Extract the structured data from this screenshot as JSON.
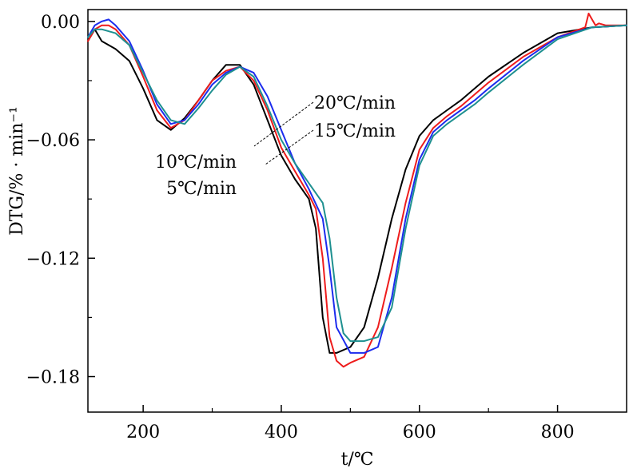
{
  "chart_data": {
    "type": "line",
    "xlabel": "t/℃",
    "ylabel": "DTG/% · min⁻¹",
    "xlim": [
      120,
      900
    ],
    "ylim": [
      -0.198,
      0.006
    ],
    "xticks": [
      200,
      400,
      600,
      800
    ],
    "xtick_labels": [
      "200",
      "400",
      "600",
      "800"
    ],
    "yticks": [
      0.0,
      -0.06,
      -0.12,
      -0.18
    ],
    "ytick_labels": [
      "0.00",
      "−0.06",
      "−0.12",
      "−0.18"
    ],
    "grid": false,
    "annotations": [
      {
        "text": "20℃/min",
        "series": 3
      },
      {
        "text": "15℃/min",
        "series": 2
      },
      {
        "text": "10℃/min",
        "series": 1
      },
      {
        "text": "5℃/min",
        "series": 0
      }
    ],
    "series": [
      {
        "color": "#000000",
        "x": [
          120,
          130,
          140,
          160,
          180,
          200,
          220,
          240,
          260,
          280,
          300,
          320,
          340,
          360,
          380,
          400,
          420,
          440,
          450,
          460,
          470,
          480,
          500,
          520,
          540,
          560,
          580,
          600,
          620,
          640,
          660,
          680,
          700,
          750,
          800,
          850,
          900
        ],
        "y": [
          -0.01,
          -0.004,
          -0.01,
          -0.014,
          -0.02,
          -0.034,
          -0.05,
          -0.055,
          -0.049,
          -0.04,
          -0.03,
          -0.022,
          -0.022,
          -0.032,
          -0.05,
          -0.068,
          -0.08,
          -0.09,
          -0.105,
          -0.15,
          -0.168,
          -0.168,
          -0.165,
          -0.155,
          -0.13,
          -0.1,
          -0.075,
          -0.058,
          -0.05,
          -0.045,
          -0.04,
          -0.034,
          -0.028,
          -0.016,
          -0.006,
          -0.003,
          -0.002
        ]
      },
      {
        "color": "#ee1c1c",
        "x": [
          120,
          130,
          140,
          150,
          160,
          180,
          200,
          220,
          240,
          260,
          280,
          300,
          320,
          340,
          360,
          380,
          400,
          420,
          440,
          450,
          460,
          470,
          480,
          490,
          500,
          520,
          540,
          560,
          580,
          600,
          620,
          640,
          660,
          680,
          700,
          750,
          800,
          840,
          845,
          850,
          855,
          860,
          870,
          880,
          900
        ],
        "y": [
          -0.01,
          -0.004,
          -0.002,
          -0.002,
          -0.004,
          -0.012,
          -0.028,
          -0.045,
          -0.054,
          -0.05,
          -0.04,
          -0.03,
          -0.025,
          -0.023,
          -0.03,
          -0.045,
          -0.064,
          -0.076,
          -0.088,
          -0.095,
          -0.12,
          -0.16,
          -0.172,
          -0.175,
          -0.173,
          -0.17,
          -0.155,
          -0.125,
          -0.092,
          -0.065,
          -0.054,
          -0.048,
          -0.043,
          -0.037,
          -0.031,
          -0.018,
          -0.008,
          -0.003,
          0.004,
          0.001,
          -0.002,
          -0.001,
          -0.002,
          -0.002,
          -0.002
        ]
      },
      {
        "color": "#1c2cee",
        "x": [
          120,
          130,
          140,
          150,
          160,
          180,
          200,
          220,
          240,
          260,
          280,
          300,
          320,
          340,
          360,
          380,
          400,
          420,
          440,
          460,
          470,
          480,
          500,
          520,
          540,
          560,
          580,
          600,
          620,
          640,
          660,
          680,
          700,
          750,
          800,
          850,
          900
        ],
        "y": [
          -0.008,
          -0.002,
          0.0,
          0.001,
          -0.002,
          -0.01,
          -0.025,
          -0.042,
          -0.052,
          -0.05,
          -0.042,
          -0.032,
          -0.026,
          -0.023,
          -0.026,
          -0.038,
          -0.055,
          -0.072,
          -0.085,
          -0.1,
          -0.125,
          -0.155,
          -0.168,
          -0.168,
          -0.165,
          -0.14,
          -0.1,
          -0.07,
          -0.056,
          -0.05,
          -0.045,
          -0.04,
          -0.034,
          -0.02,
          -0.008,
          -0.003,
          -0.002
        ]
      },
      {
        "color": "#1e9090",
        "x": [
          120,
          130,
          140,
          160,
          180,
          200,
          220,
          240,
          260,
          280,
          300,
          320,
          340,
          360,
          380,
          400,
          420,
          440,
          460,
          470,
          480,
          490,
          500,
          520,
          540,
          560,
          580,
          600,
          620,
          640,
          660,
          680,
          700,
          750,
          800,
          850,
          900
        ],
        "y": [
          -0.008,
          -0.004,
          -0.004,
          -0.006,
          -0.012,
          -0.026,
          -0.04,
          -0.05,
          -0.052,
          -0.044,
          -0.035,
          -0.027,
          -0.023,
          -0.028,
          -0.043,
          -0.06,
          -0.072,
          -0.082,
          -0.092,
          -0.11,
          -0.14,
          -0.158,
          -0.162,
          -0.162,
          -0.16,
          -0.145,
          -0.105,
          -0.073,
          -0.058,
          -0.052,
          -0.047,
          -0.042,
          -0.036,
          -0.022,
          -0.009,
          -0.003,
          -0.002
        ]
      }
    ]
  }
}
